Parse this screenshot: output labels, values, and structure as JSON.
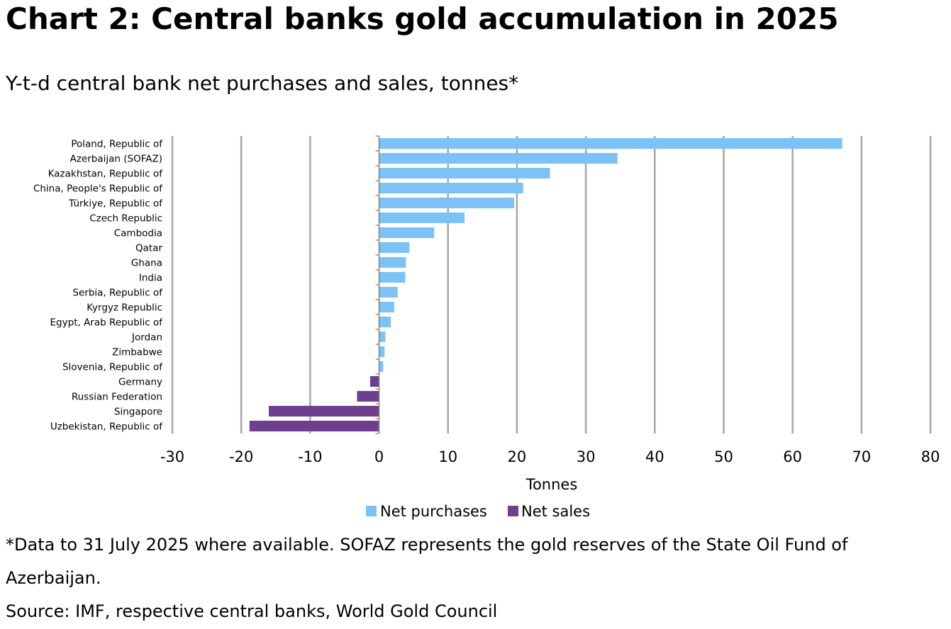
{
  "header": {
    "title": "Chart 2: Central banks gold accumulation in 2025",
    "subtitle": "Y-t-d central bank net purchases and sales, tonnes*"
  },
  "footer": {
    "footnote": "*Data to 31 July 2025 where available. SOFAZ represents the gold reserves of the State Oil Fund of Azerbaijan.",
    "source": "Source: IMF, respective central banks, World Gold Council"
  },
  "chart_data": {
    "type": "bar",
    "orientation": "horizontal",
    "title": "Chart 2: Central banks gold accumulation in 2025",
    "subtitle": "Y-t-d central bank net purchases and sales, tonnes*",
    "xlabel": "Tonnes",
    "ylabel": "",
    "xlim": [
      -30,
      80
    ],
    "xticks": [
      -30,
      -20,
      -10,
      0,
      10,
      20,
      30,
      40,
      50,
      60,
      70,
      80
    ],
    "grid": "vertical",
    "legend_position": "bottom",
    "categories": [
      "Poland, Republic of",
      "Azerbaijan (SOFAZ)",
      "Kazakhstan, Republic of",
      "China, People's Republic of",
      "Türkiye, Republic of",
      "Czech Republic",
      "Cambodia",
      "Qatar",
      "Ghana",
      "India",
      "Serbia, Republic of",
      "Kyrgyz Republic",
      "Egypt, Arab Republic of",
      "Jordan",
      "Zimbabwe",
      "Slovenia, Republic of",
      "Germany",
      "Russian Federation",
      "Singapore",
      "Uzbekistan, Republic of"
    ],
    "values": [
      67.2,
      34.6,
      24.8,
      20.9,
      19.6,
      12.4,
      8.0,
      4.4,
      3.9,
      3.8,
      2.7,
      2.2,
      1.7,
      0.9,
      0.8,
      0.6,
      -1.3,
      -3.2,
      -16.0,
      -18.8
    ],
    "series": [
      {
        "name": "Net purchases",
        "color": "#7DC2F7"
      },
      {
        "name": "Net sales",
        "color": "#6E3F8D"
      }
    ]
  }
}
